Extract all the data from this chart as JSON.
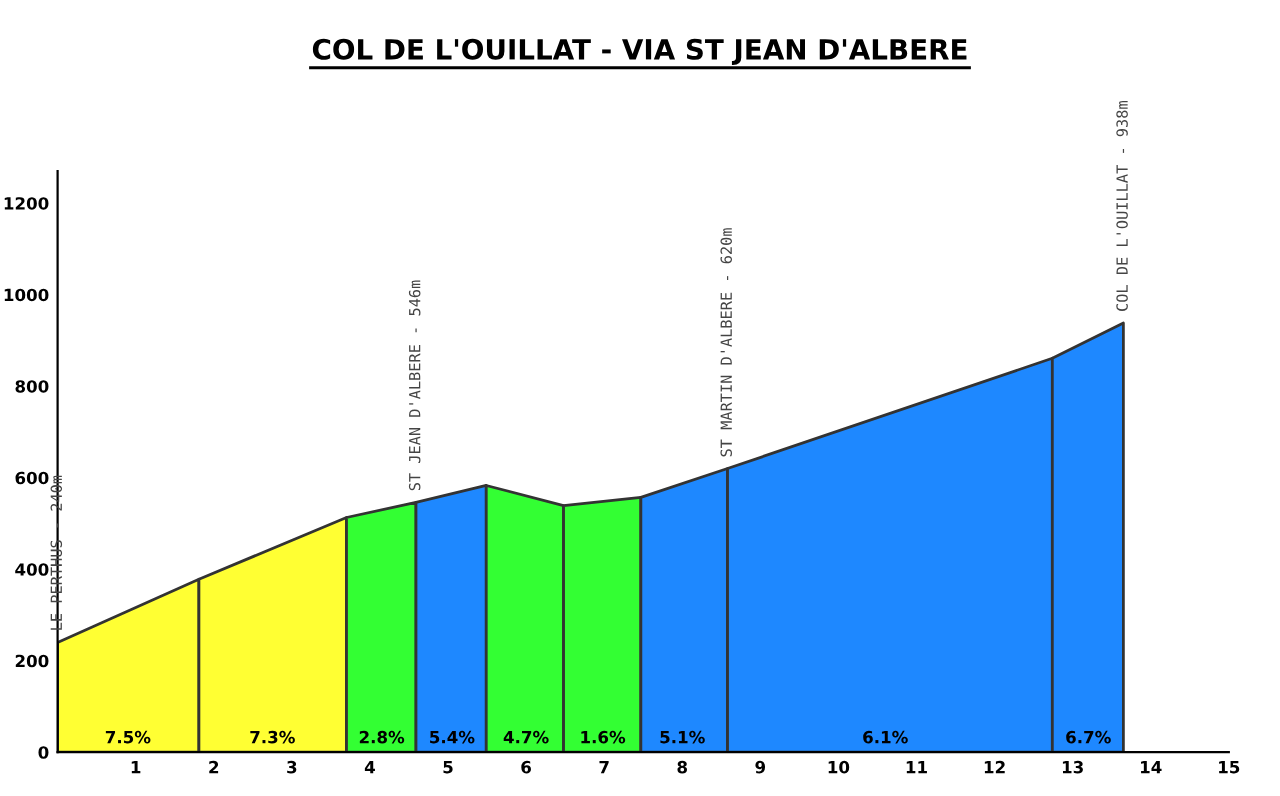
{
  "chart_data": {
    "type": "area",
    "title": "COL DE L'OUILLAT - VIA ST JEAN D'ALBERE",
    "series": [
      {
        "color": "#ffff33",
        "x": [
          0,
          1.81
        ],
        "values": [
          240,
          378
        ]
      },
      {
        "color": "#ffff33",
        "x": [
          1.81,
          3.7
        ],
        "values": [
          378,
          513
        ]
      },
      {
        "color": "#33ff33",
        "x": [
          3.7,
          4.59
        ],
        "values": [
          513,
          546
        ]
      },
      {
        "color": "#1e88ff",
        "x": [
          4.59,
          5.49
        ],
        "values": [
          546,
          583
        ]
      },
      {
        "color": "#33ff33",
        "x": [
          5.49,
          6.48
        ],
        "values": [
          583,
          539
        ]
      },
      {
        "color": "#33ff33",
        "x": [
          6.48,
          7.47
        ],
        "values": [
          539,
          557
        ]
      },
      {
        "color": "#1e88ff",
        "x": [
          7.47,
          8.58
        ],
        "values": [
          557,
          620
        ]
      },
      {
        "color": "#1e88ff",
        "x": [
          8.58,
          12.74
        ],
        "values": [
          620,
          861
        ]
      },
      {
        "color": "#1e88ff",
        "x": [
          12.74,
          13.65
        ],
        "values": [
          861,
          938
        ]
      }
    ],
    "annotations": [
      {
        "text": "7.5%",
        "x": 0.9,
        "y": 0
      },
      {
        "text": "7.3%",
        "x": 2.75,
        "y": 0
      },
      {
        "text": "2.8%",
        "x": 4.15,
        "y": 0
      },
      {
        "text": "5.4%",
        "x": 5.05,
        "y": 0
      },
      {
        "text": "4.7%",
        "x": 6.0,
        "y": 0
      },
      {
        "text": "1.6%",
        "x": 6.98,
        "y": 0
      },
      {
        "text": "5.1%",
        "x": 8.0,
        "y": 0
      },
      {
        "text": "6.1%",
        "x": 10.6,
        "y": 0
      },
      {
        "text": "6.7%",
        "x": 13.2,
        "y": 0
      },
      {
        "text": "LE PERTHUS - 240m",
        "x": 0,
        "y": 240
      },
      {
        "text": "ST JEAN D'ALBERE - 546m",
        "x": 4.59,
        "y": 546
      },
      {
        "text": "ST MARTIN D'ALBERE - 620m",
        "x": 8.58,
        "y": 620
      },
      {
        "text": "COL DE L'OUILLAT - 938m",
        "x": 13.65,
        "y": 938
      }
    ],
    "xlim": [
      0,
      15
    ],
    "xticks": [
      1,
      2,
      3,
      4,
      5,
      6,
      7,
      8,
      9,
      10,
      11,
      12,
      13,
      14,
      15
    ],
    "ylim": [
      0,
      1270
    ],
    "yticks": [
      0,
      200,
      400,
      600,
      800,
      1000,
      1200
    ],
    "grid": false,
    "legend": false
  }
}
